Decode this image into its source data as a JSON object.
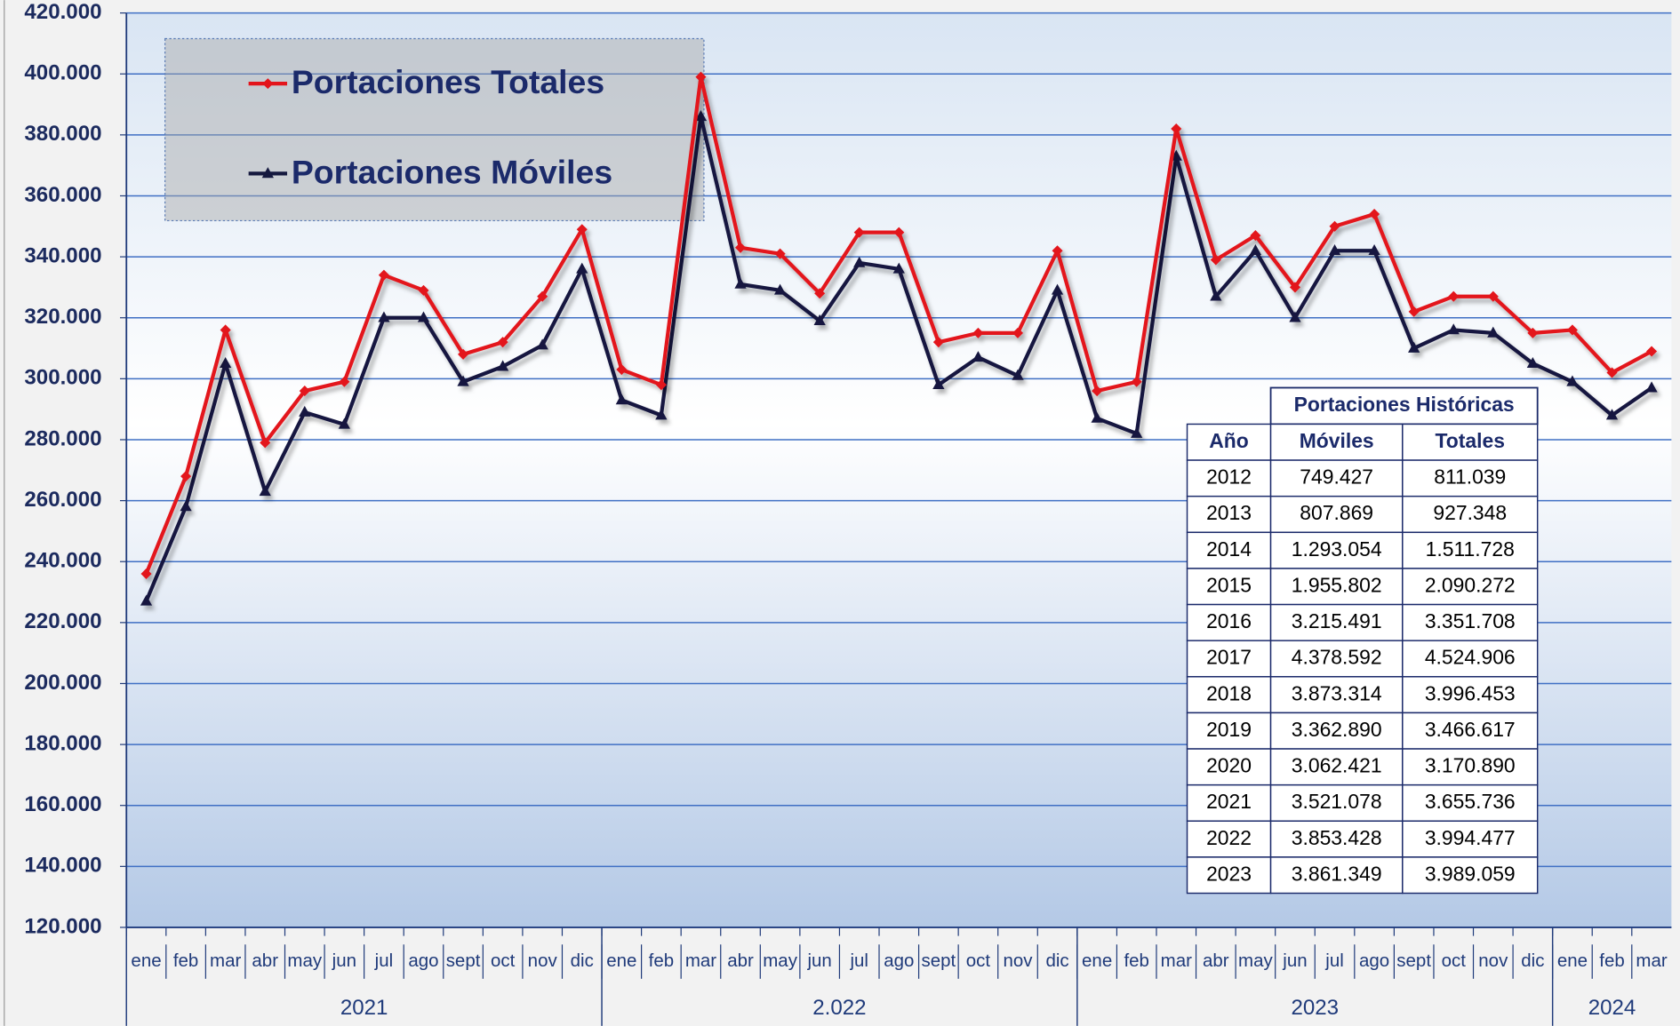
{
  "chart_data": {
    "type": "line",
    "categories": [
      "ene",
      "feb",
      "mar",
      "abr",
      "may",
      "jun",
      "jul",
      "ago",
      "sept",
      "oct",
      "nov",
      "dic",
      "ene",
      "feb",
      "mar",
      "abr",
      "may",
      "jun",
      "jul",
      "ago",
      "sept",
      "oct",
      "nov",
      "dic",
      "ene",
      "feb",
      "mar",
      "abr",
      "may",
      "jun",
      "jul",
      "ago",
      "sept",
      "oct",
      "nov",
      "dic",
      "ene",
      "feb",
      "mar"
    ],
    "groups": [
      "2021",
      "2.022",
      "2023",
      "2024"
    ],
    "series": [
      {
        "name": "Portaciones Totales",
        "color": "#e3141b",
        "marker": "diamond",
        "values": [
          236000,
          268000,
          316000,
          279000,
          296000,
          299000,
          334000,
          329000,
          308000,
          312000,
          327000,
          349000,
          303000,
          298000,
          399000,
          343000,
          341000,
          328000,
          348000,
          348000,
          312000,
          315000,
          315000,
          342000,
          296000,
          299000,
          382000,
          339000,
          347000,
          330000,
          350000,
          354000,
          322000,
          327000,
          327000,
          315000,
          316000,
          302000,
          309000
        ]
      },
      {
        "name": "Portaciones Móviles",
        "color": "#15193f",
        "marker": "triangle",
        "values": [
          227000,
          258000,
          305000,
          263000,
          289000,
          285000,
          320000,
          320000,
          299000,
          304000,
          311000,
          336000,
          293000,
          288000,
          386000,
          331000,
          329000,
          319000,
          338000,
          336000,
          298000,
          307000,
          301000,
          329000,
          287000,
          282000,
          373000,
          327000,
          342000,
          320000,
          342000,
          342000,
          310000,
          316000,
          315000,
          305000,
          299000,
          288000,
          297000
        ]
      }
    ],
    "ylim": [
      120000,
      420000
    ],
    "yticks": [
      {
        "value": 120000,
        "label": "120.000"
      },
      {
        "value": 140000,
        "label": "140.000"
      },
      {
        "value": 160000,
        "label": "160.000"
      },
      {
        "value": 180000,
        "label": "180.000"
      },
      {
        "value": 200000,
        "label": "200.000"
      },
      {
        "value": 220000,
        "label": "220.000"
      },
      {
        "value": 240000,
        "label": "240.000"
      },
      {
        "value": 260000,
        "label": "260.000"
      },
      {
        "value": 280000,
        "label": "280.000"
      },
      {
        "value": 300000,
        "label": "300.000"
      },
      {
        "value": 320000,
        "label": "320.000"
      },
      {
        "value": 340000,
        "label": "340.000"
      },
      {
        "value": 360000,
        "label": "360.000"
      },
      {
        "value": 380000,
        "label": "380.000"
      },
      {
        "value": 400000,
        "label": "400.000"
      },
      {
        "value": 420000,
        "label": "420.000"
      }
    ],
    "grid": true,
    "legend": "upper left"
  },
  "table": {
    "title": "Portaciones Históricas",
    "columns": [
      "Año",
      "Móviles",
      "Totales"
    ],
    "rows": [
      [
        "2012",
        "749.427",
        "811.039"
      ],
      [
        "2013",
        "807.869",
        "927.348"
      ],
      [
        "2014",
        "1.293.054",
        "1.511.728"
      ],
      [
        "2015",
        "1.955.802",
        "2.090.272"
      ],
      [
        "2016",
        "3.215.491",
        "3.351.708"
      ],
      [
        "2017",
        "4.378.592",
        "4.524.906"
      ],
      [
        "2018",
        "3.873.314",
        "3.996.453"
      ],
      [
        "2019",
        "3.362.890",
        "3.466.617"
      ],
      [
        "2020",
        "3.062.421",
        "3.170.890"
      ],
      [
        "2021",
        "3.521.078",
        "3.655.736"
      ],
      [
        "2022",
        "3.853.428",
        "3.994.477"
      ],
      [
        "2023",
        "3.861.349",
        "3.989.059"
      ]
    ]
  }
}
